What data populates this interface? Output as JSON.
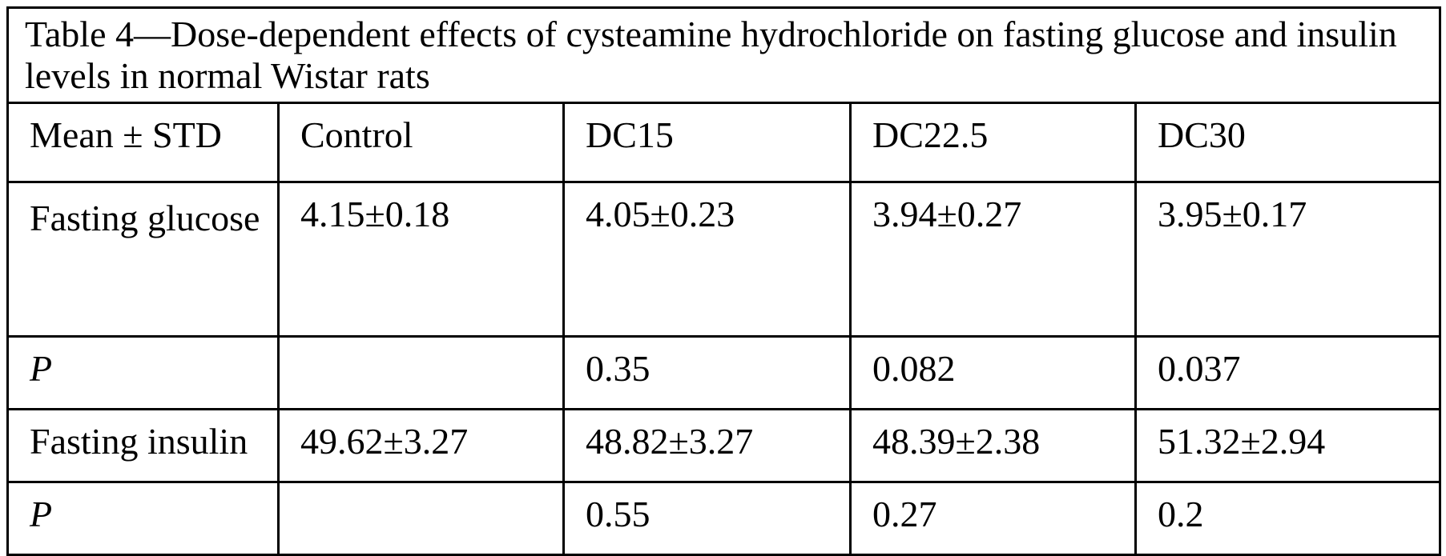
{
  "table": {
    "caption": "Table 4—Dose-dependent effects of cysteamine hydrochloride on fasting glucose and insulin levels in normal Wistar rats",
    "headers": [
      "Mean ± STD",
      "Control",
      "DC15",
      "DC22.5",
      "DC30"
    ],
    "rows": [
      {
        "label": "Fasting glucose",
        "cells": [
          "4.15±0.18",
          "4.05±0.23",
          "3.94±0.27",
          "3.95±0.17"
        ]
      },
      {
        "label": "P",
        "cells": [
          "",
          "0.35",
          "0.082",
          "0.037"
        ]
      },
      {
        "label": "Fasting insulin",
        "cells": [
          "49.62±3.27",
          "48.82±3.27",
          "48.39±2.38",
          "51.32±2.94"
        ]
      },
      {
        "label": "P",
        "cells": [
          "",
          "0.55",
          "0.27",
          "0.2"
        ]
      }
    ]
  }
}
